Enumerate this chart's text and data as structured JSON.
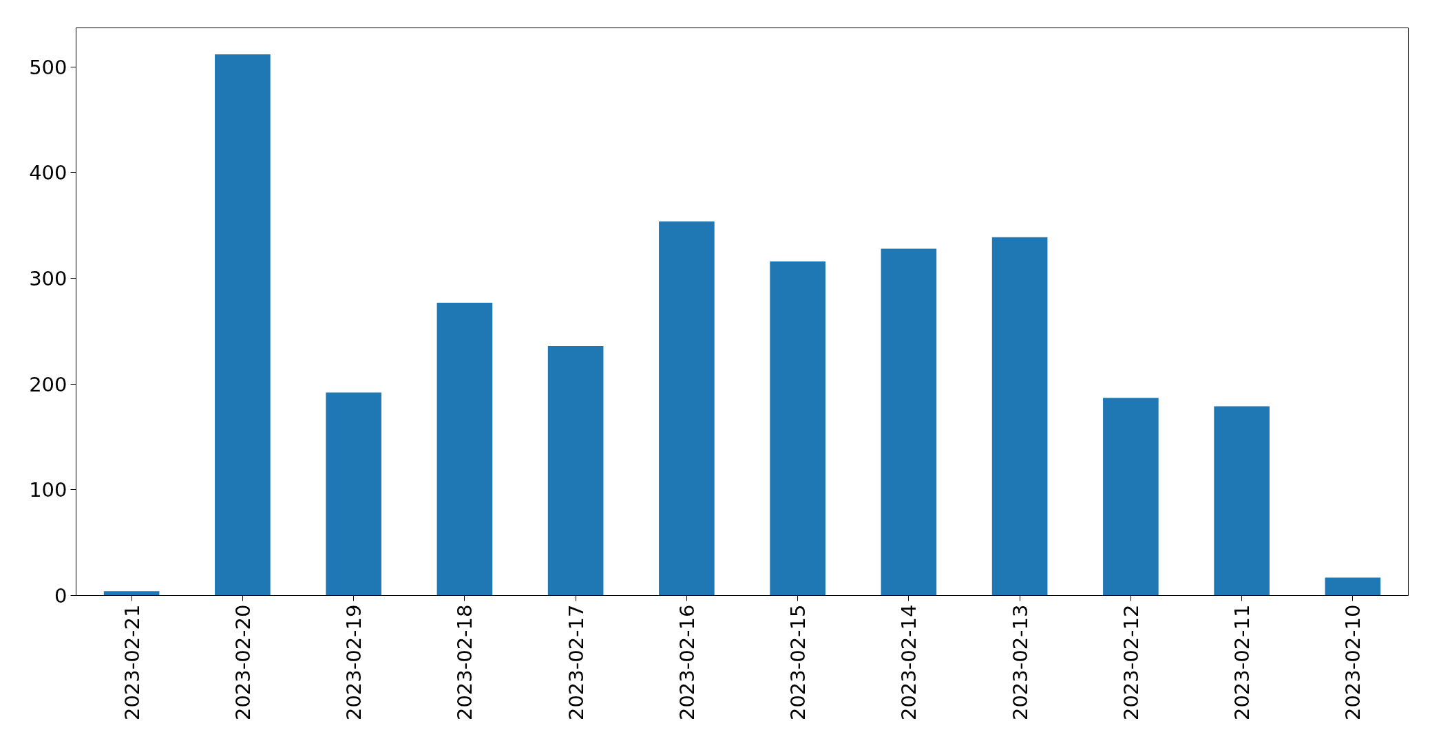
{
  "chart_data": {
    "type": "bar",
    "categories": [
      "2023-02-21",
      "2023-02-20",
      "2023-02-19",
      "2023-02-18",
      "2023-02-17",
      "2023-02-16",
      "2023-02-15",
      "2023-02-14",
      "2023-02-13",
      "2023-02-12",
      "2023-02-11",
      "2023-02-10"
    ],
    "values": [
      4,
      512,
      192,
      277,
      236,
      354,
      316,
      328,
      339,
      187,
      179,
      17
    ],
    "color": "#1f77b4",
    "ylim": [
      0,
      537
    ],
    "yticks": [
      0,
      100,
      200,
      300,
      400,
      500
    ],
    "grid": false
  }
}
